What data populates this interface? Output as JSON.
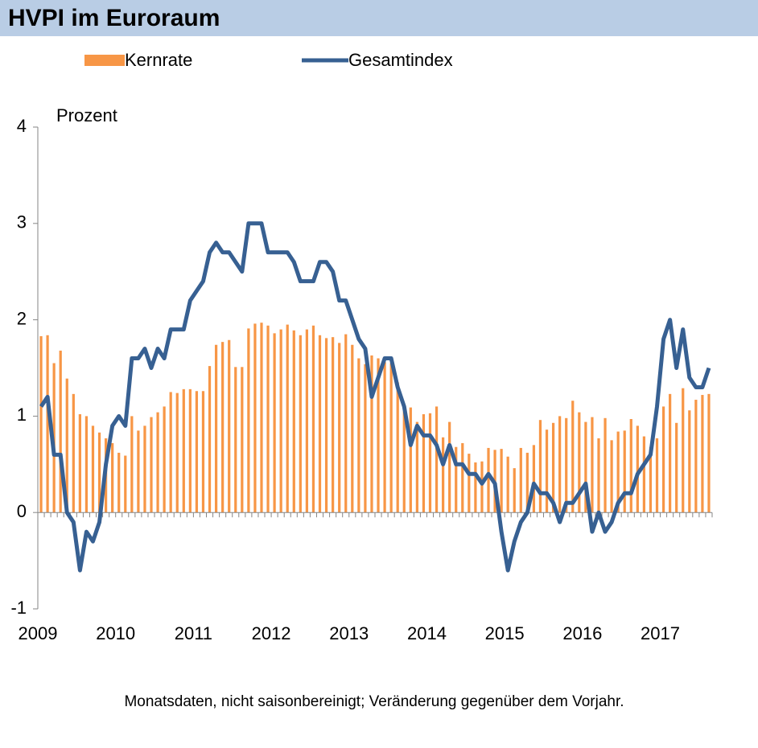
{
  "header": {
    "title": "HVPI im Euroraum"
  },
  "chart_data": {
    "type": "bar",
    "y_label": "Prozent",
    "note": "Monatsdaten, nicht saisonbereinigt; Veränderung gegenüber  dem Vorjahr.",
    "categories": [
      "2009",
      null,
      null,
      null,
      null,
      null,
      null,
      null,
      null,
      null,
      null,
      null,
      "2010",
      null,
      null,
      null,
      null,
      null,
      null,
      null,
      null,
      null,
      null,
      null,
      "2011",
      null,
      null,
      null,
      null,
      null,
      null,
      null,
      null,
      null,
      null,
      null,
      "2012",
      null,
      null,
      null,
      null,
      null,
      null,
      null,
      null,
      null,
      null,
      null,
      "2013",
      null,
      null,
      null,
      null,
      null,
      null,
      null,
      null,
      null,
      null,
      null,
      "2014",
      null,
      null,
      null,
      null,
      null,
      null,
      null,
      null,
      null,
      null,
      null,
      "2015",
      null,
      null,
      null,
      null,
      null,
      null,
      null,
      null,
      null,
      null,
      null,
      "2016",
      null,
      null,
      null,
      null,
      null,
      null,
      null,
      null,
      null,
      null,
      null,
      "2017",
      null,
      null,
      null,
      null,
      null,
      null,
      null
    ],
    "series": [
      {
        "name": "Kernrate",
        "type": "bar",
        "color": "#f79646",
        "values": [
          1.83,
          1.84,
          1.55,
          1.68,
          1.39,
          1.23,
          1.02,
          1.0,
          0.9,
          0.83,
          0.77,
          0.72,
          0.62,
          0.59,
          1.0,
          0.85,
          0.9,
          0.99,
          1.04,
          1.1,
          1.25,
          1.24,
          1.28,
          1.28,
          1.26,
          1.26,
          1.52,
          1.74,
          1.77,
          1.79,
          1.51,
          1.51,
          1.91,
          1.96,
          1.97,
          1.94,
          1.86,
          1.9,
          1.95,
          1.89,
          1.84,
          1.9,
          1.94,
          1.84,
          1.81,
          1.82,
          1.76,
          1.85,
          1.74,
          1.6,
          1.54,
          1.63,
          1.6,
          1.56,
          1.55,
          1.35,
          1.05,
          1.09,
          0.94,
          1.02,
          1.03,
          1.1,
          0.78,
          0.94,
          0.68,
          0.72,
          0.61,
          0.52,
          0.53,
          0.67,
          0.65,
          0.66,
          0.58,
          0.46,
          0.67,
          0.62,
          0.7,
          0.96,
          0.86,
          0.93,
          1.0,
          0.98,
          1.16,
          1.04,
          0.94,
          0.99,
          0.77,
          0.98,
          0.75,
          0.84,
          0.85,
          0.97,
          0.9,
          0.79,
          0.68,
          0.77,
          1.1,
          1.23,
          0.93,
          1.29,
          1.06,
          1.17,
          1.22,
          1.23
        ]
      },
      {
        "name": "Gesamtindex",
        "type": "line",
        "color": "#376092",
        "values": [
          1.1,
          1.2,
          0.6,
          0.6,
          0.0,
          -0.1,
          -0.6,
          -0.2,
          -0.3,
          -0.1,
          0.5,
          0.9,
          1.0,
          0.9,
          1.6,
          1.6,
          1.7,
          1.5,
          1.7,
          1.6,
          1.9,
          1.9,
          1.9,
          2.2,
          2.3,
          2.4,
          2.7,
          2.8,
          2.7,
          2.7,
          2.6,
          2.5,
          3.0,
          3.0,
          3.0,
          2.7,
          2.7,
          2.7,
          2.7,
          2.6,
          2.4,
          2.4,
          2.4,
          2.6,
          2.6,
          2.5,
          2.2,
          2.2,
          2.0,
          1.8,
          1.7,
          1.2,
          1.4,
          1.6,
          1.6,
          1.3,
          1.1,
          0.7,
          0.9,
          0.8,
          0.8,
          0.7,
          0.5,
          0.7,
          0.5,
          0.5,
          0.4,
          0.4,
          0.3,
          0.4,
          0.3,
          -0.2,
          -0.6,
          -0.3,
          -0.1,
          0.0,
          0.3,
          0.2,
          0.2,
          0.1,
          -0.1,
          0.1,
          0.1,
          0.2,
          0.3,
          -0.2,
          0.0,
          -0.2,
          -0.1,
          0.1,
          0.2,
          0.2,
          0.4,
          0.5,
          0.6,
          1.1,
          1.8,
          2.0,
          1.5,
          1.9,
          1.4,
          1.3,
          1.3,
          1.5
        ]
      }
    ],
    "ylim": [
      -1,
      4
    ],
    "yticks": [
      -1,
      0,
      1,
      2,
      3,
      4
    ],
    "grid": false
  }
}
